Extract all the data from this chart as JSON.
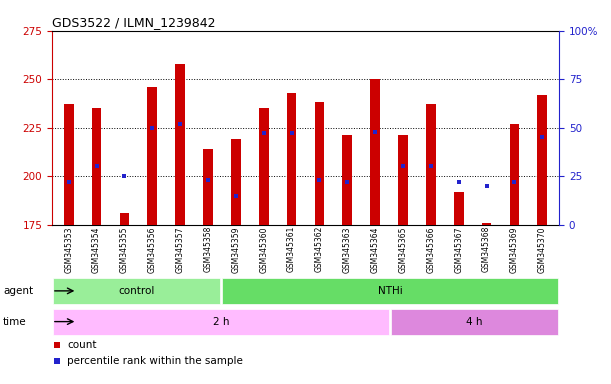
{
  "title": "GDS3522 / ILMN_1239842",
  "samples": [
    "GSM345353",
    "GSM345354",
    "GSM345355",
    "GSM345356",
    "GSM345357",
    "GSM345358",
    "GSM345359",
    "GSM345360",
    "GSM345361",
    "GSM345362",
    "GSM345363",
    "GSM345364",
    "GSM345365",
    "GSM345366",
    "GSM345367",
    "GSM345368",
    "GSM345369",
    "GSM345370"
  ],
  "counts": [
    237,
    235,
    181,
    246,
    258,
    214,
    219,
    235,
    243,
    238,
    221,
    250,
    221,
    237,
    192,
    176,
    227,
    242
  ],
  "percentile_ranks": [
    22,
    30,
    25,
    50,
    52,
    23,
    15,
    47,
    47,
    23,
    22,
    48,
    30,
    30,
    22,
    20,
    22,
    45
  ],
  "ylim_left": [
    175,
    275
  ],
  "ylim_right": [
    0,
    100
  ],
  "y_ticks_left": [
    175,
    200,
    225,
    250,
    275
  ],
  "y_ticks_right": [
    0,
    25,
    50,
    75,
    100
  ],
  "bar_color": "#cc0000",
  "dot_color": "#2222cc",
  "agent_label": "agent",
  "time_label": "time",
  "agent_groups": [
    {
      "label": "control",
      "start": 0,
      "end": 6,
      "color": "#99ee99"
    },
    {
      "label": "NTHi",
      "start": 6,
      "end": 18,
      "color": "#66dd66"
    }
  ],
  "time_groups": [
    {
      "label": "2 h",
      "start": 0,
      "end": 12,
      "color": "#ffbbff"
    },
    {
      "label": "4 h",
      "start": 12,
      "end": 18,
      "color": "#dd88dd"
    }
  ],
  "legend_count_label": "count",
  "legend_pct_label": "percentile rank within the sample",
  "left_axis_color": "#cc0000",
  "right_axis_color": "#2222cc"
}
